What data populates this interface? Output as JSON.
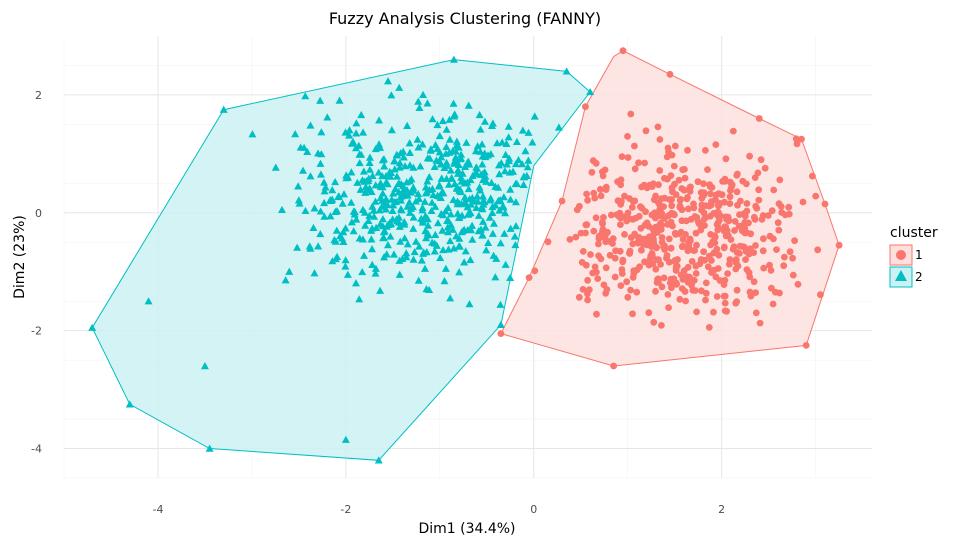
{
  "chart_data": {
    "type": "scatter",
    "title": "Fuzzy Analysis Clustering (FANNY)",
    "xlabel": "Dim1 (34.4%)",
    "ylabel": "Dim2 (23%)",
    "xlim": [
      -5.0,
      3.6
    ],
    "ylim": [
      -4.5,
      3.0
    ],
    "x_ticks": [
      -4,
      -2,
      0,
      2
    ],
    "y_ticks": [
      2,
      0,
      -2,
      -4
    ],
    "x_tick_labels": [
      "-4",
      "-2",
      "0",
      "2"
    ],
    "y_tick_labels": [
      "2",
      "0",
      "-2",
      "-4"
    ],
    "grid": true,
    "legend_position": "right",
    "legend": {
      "title": "cluster",
      "entries": [
        {
          "label": "1"
        },
        {
          "label": "2"
        }
      ]
    },
    "series": [
      {
        "name": "1",
        "shape": "circle",
        "color": "#F8766D",
        "fill": "#FDE0DE",
        "hull": [
          [
            0.95,
            2.75
          ],
          [
            1.45,
            2.35
          ],
          [
            2.4,
            1.6
          ],
          [
            2.85,
            1.25
          ],
          [
            3.1,
            0.15
          ],
          [
            3.25,
            -0.55
          ],
          [
            2.9,
            -2.25
          ],
          [
            0.85,
            -2.6
          ],
          [
            -0.35,
            -2.05
          ],
          [
            -0.05,
            -1.1
          ],
          [
            0.3,
            0.2
          ],
          [
            0.55,
            1.8
          ],
          [
            0.85,
            2.65
          ]
        ],
        "points": [
          [
            0.95,
            2.75
          ],
          [
            1.45,
            2.35
          ],
          [
            2.4,
            1.6
          ],
          [
            3.25,
            -0.55
          ],
          [
            2.9,
            -2.25
          ],
          [
            0.85,
            -2.6
          ],
          [
            -0.35,
            -2.05
          ],
          [
            3.1,
            0.15
          ],
          [
            2.85,
            1.25
          ],
          [
            0.55,
            1.8
          ],
          [
            0.3,
            0.2
          ],
          [
            -0.05,
            -1.1
          ]
        ]
      },
      {
        "name": "2",
        "shape": "triangle",
        "color": "#00BFC4",
        "fill": "#CCF1F2",
        "hull": [
          [
            -0.85,
            2.6
          ],
          [
            0.35,
            2.4
          ],
          [
            0.6,
            2.05
          ],
          [
            0.0,
            0.8
          ],
          [
            -0.35,
            -1.9
          ],
          [
            -1.65,
            -4.2
          ],
          [
            -3.45,
            -4.0
          ],
          [
            -4.3,
            -3.25
          ],
          [
            -4.7,
            -1.95
          ],
          [
            -3.3,
            1.75
          ]
        ],
        "points": [
          [
            -0.85,
            2.6
          ],
          [
            0.35,
            2.4
          ],
          [
            -3.3,
            1.75
          ],
          [
            -4.7,
            -1.95
          ],
          [
            -4.3,
            -3.25
          ],
          [
            -3.45,
            -4.0
          ],
          [
            -1.65,
            -4.2
          ],
          [
            -0.35,
            -1.9
          ],
          [
            0.6,
            2.05
          ],
          [
            -2.0,
            -3.85
          ],
          [
            -3.5,
            -2.6
          ],
          [
            -4.1,
            -1.5
          ]
        ]
      }
    ]
  }
}
